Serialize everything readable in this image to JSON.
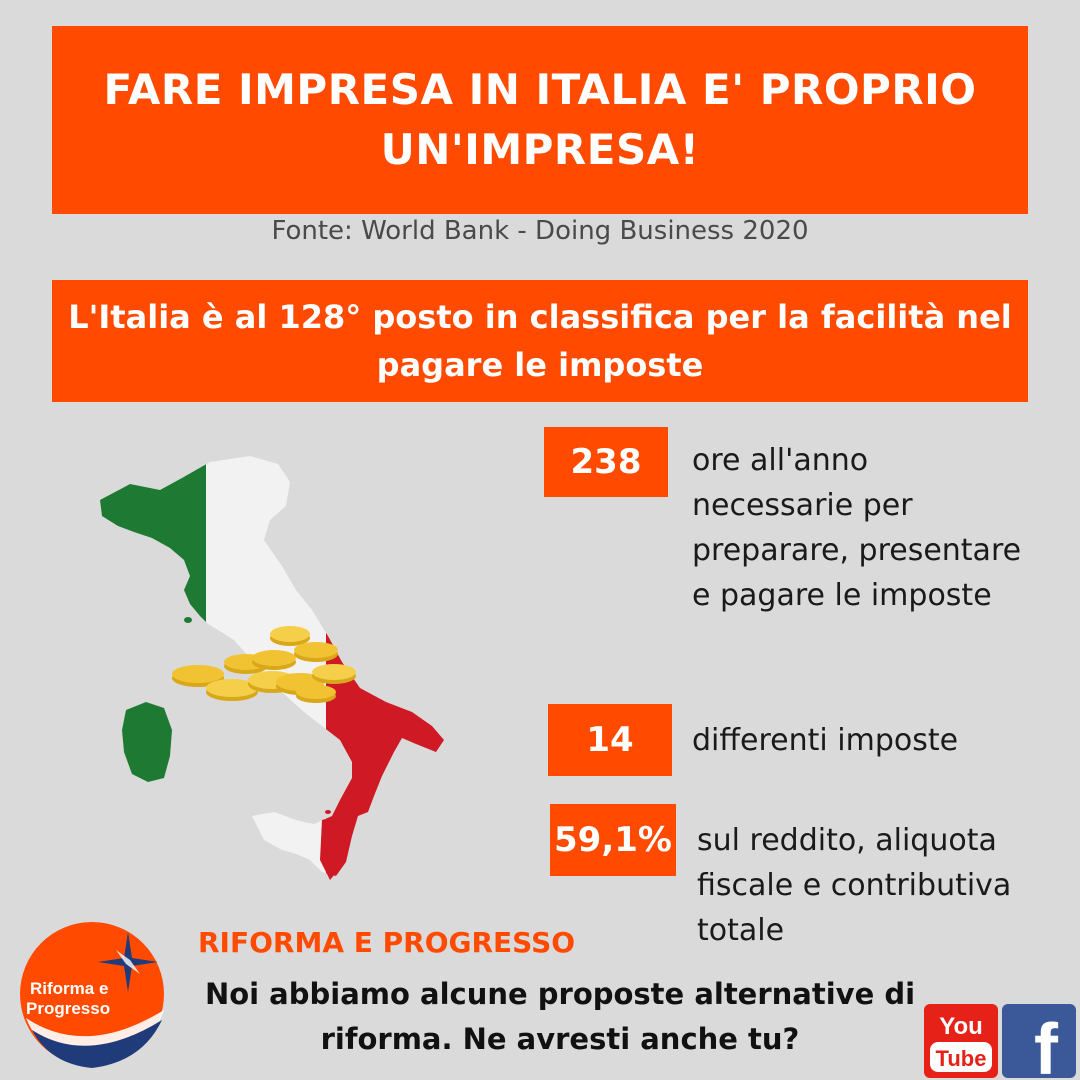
{
  "header": {
    "title": "FARE IMPRESA IN ITALIA E' PROPRIO UN'IMPRESA!",
    "source": "Fonte: World Bank - Doing Business 2020"
  },
  "highlight": {
    "text": "L'Italia è al 128° posto in classifica per la facilità nel pagare le imposte"
  },
  "stats": [
    {
      "value": "238",
      "text": "ore all'anno necessarie per preparare, presentare e pagare le imposte"
    },
    {
      "value": "14",
      "text": "differenti imposte"
    },
    {
      "value": "59,1%",
      "text": "sul reddito, aliquota fiscale e contributiva totale"
    }
  ],
  "footer": {
    "org_name": "RIFORMA E PROGRESSO",
    "cta": "Noi abbiamo alcune proposte alternative di riforma. Ne avresti anche tu?",
    "logo_text_1": "Riforma e",
    "logo_text_2": "Progresso"
  },
  "social": {
    "youtube_top": "You",
    "youtube_bottom": "Tube",
    "facebook": "f"
  },
  "colors": {
    "accent": "#ff4a00",
    "background": "#dadada",
    "flag_green": "#1e7a32",
    "flag_white": "#f2f2f2",
    "flag_red": "#cf1a25",
    "coin_gold": "#f1c232"
  },
  "icons": [
    "italy-map-icon",
    "coins-icon",
    "star-icon",
    "youtube-icon",
    "facebook-icon"
  ]
}
